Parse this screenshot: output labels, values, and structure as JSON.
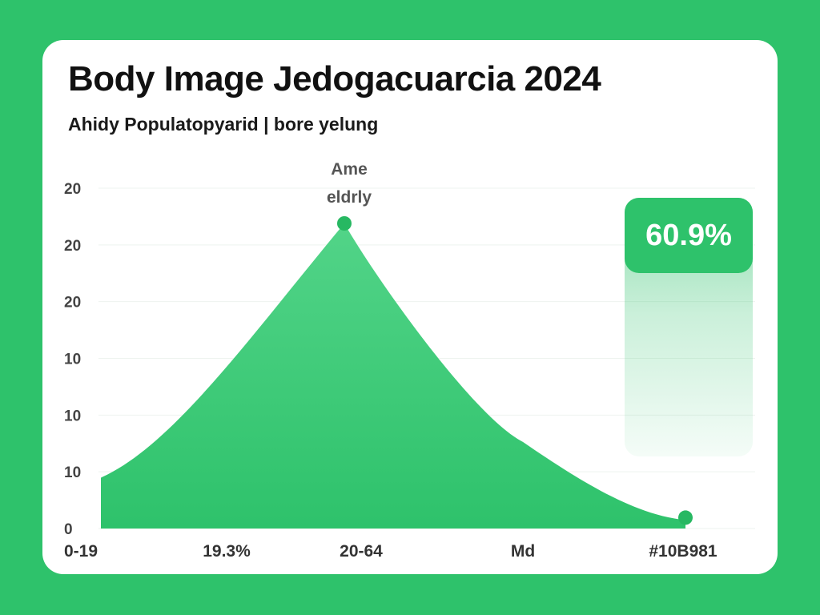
{
  "chart_data": {
    "type": "area",
    "title": "Body Image Jedogacuarcia 2024",
    "subtitle": "Ahidy Populatopyarid | bore yelung",
    "y_tick_labels": [
      "20",
      "20",
      "20",
      "10",
      "10",
      "10",
      "0"
    ],
    "x_tick_labels": [
      "0-19",
      "19.3%",
      "20-64",
      "Md",
      "#10B981"
    ],
    "series": [
      {
        "x": [
          0,
          1,
          2,
          3,
          4
        ],
        "values": [
          3,
          9,
          18,
          7,
          0.5
        ]
      }
    ],
    "peak_annotation": [
      "Ame",
      "eldrly"
    ],
    "highlight_value": "60.9%",
    "colors": {
      "background": "#2ec26b",
      "area": "#34c56f",
      "accent": "#10B981"
    }
  }
}
